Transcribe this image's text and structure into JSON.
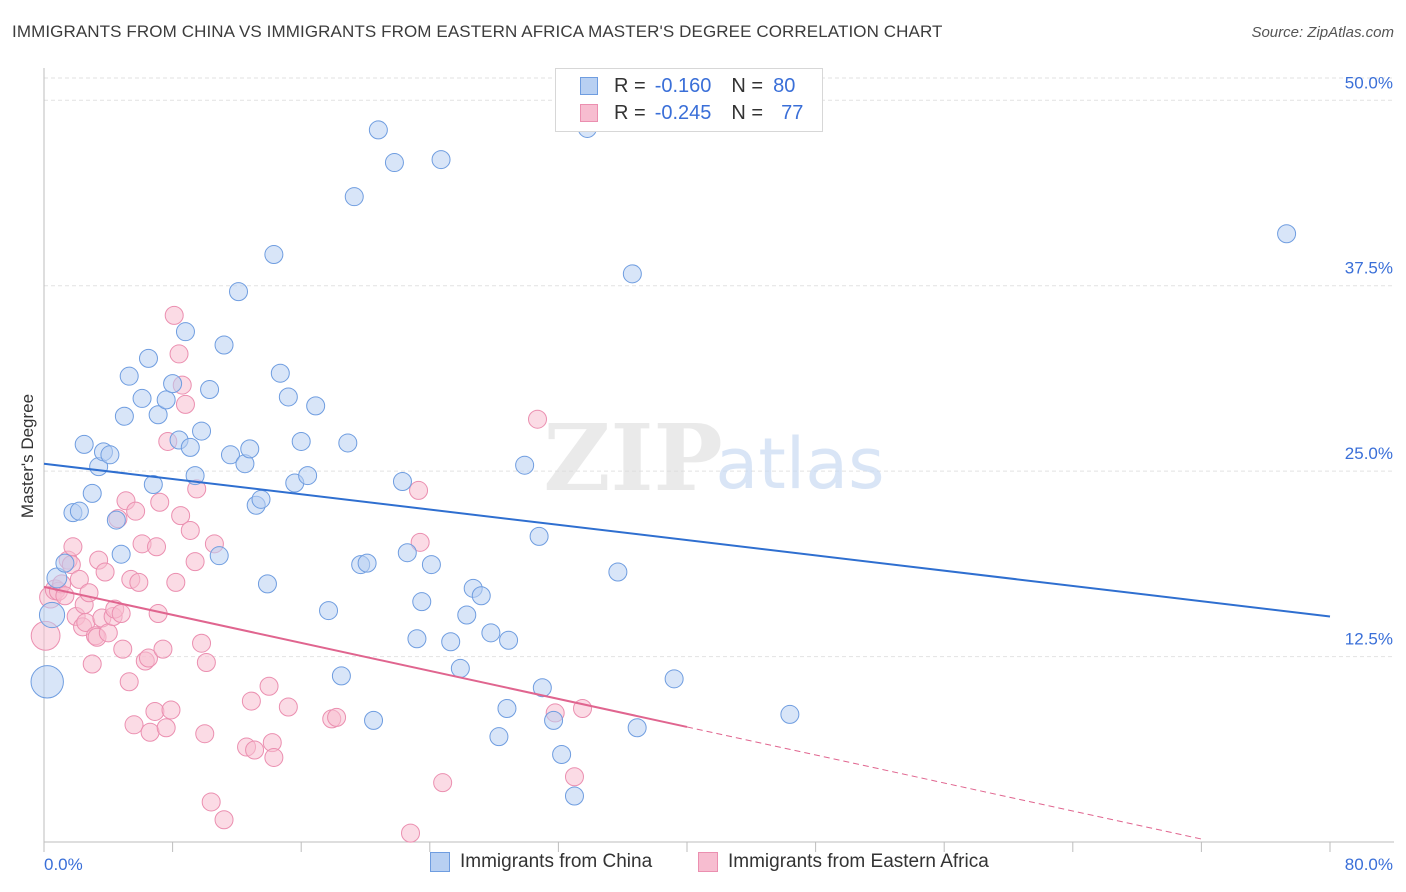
{
  "header": {
    "title": "IMMIGRANTS FROM CHINA VS IMMIGRANTS FROM EASTERN AFRICA MASTER'S DEGREE CORRELATION CHART",
    "source": "Source: ZipAtlas.com"
  },
  "watermark": {
    "zip": "ZIP",
    "atlas": "atlas"
  },
  "legend_top": {
    "rows": [
      {
        "r_label": "R =",
        "r_value": "-0.160",
        "n_label": "N =",
        "n_value": "80"
      },
      {
        "r_label": "R =",
        "r_value": "-0.245",
        "n_label": "N =",
        "n_value": "77"
      }
    ]
  },
  "legend_bottom": {
    "items": [
      {
        "label": "Immigrants from China"
      },
      {
        "label": "Immigrants from Eastern Africa"
      }
    ]
  },
  "colors": {
    "china_fill": "#b8d0f2",
    "china_stroke": "#6f9de0",
    "china_line": "#2f6fd0",
    "africa_fill": "#f7bdd0",
    "africa_stroke": "#eb8fb0",
    "africa_line": "#e0658f",
    "axis_label": "#3a6fd8",
    "grid": "#e2e2e2"
  },
  "chart_data": {
    "type": "scatter",
    "title": "IMMIGRANTS FROM CHINA VS IMMIGRANTS FROM EASTERN AFRICA MASTER'S DEGREE CORRELATION CHART",
    "xlabel": "",
    "ylabel": "Master's Degree",
    "xlim": [
      0,
      80
    ],
    "ylim": [
      0,
      51.5
    ],
    "x_tick_labels": [
      "0.0%",
      "80.0%"
    ],
    "y_ticks": [
      12.5,
      25.0,
      37.5,
      50.0
    ],
    "y_tick_labels": [
      "12.5%",
      "25.0%",
      "37.5%",
      "50.0%"
    ],
    "grid": true,
    "legend_position": "bottom",
    "series": [
      {
        "name": "Immigrants from China",
        "R": -0.16,
        "N": 80,
        "trend": {
          "x": [
            0,
            80
          ],
          "y": [
            25.5,
            15.2
          ],
          "dashed_from": null
        },
        "points": [
          [
            0.2,
            10.8,
            18
          ],
          [
            0.5,
            15.3,
            14
          ],
          [
            0.8,
            17.8,
            11
          ],
          [
            1.3,
            18.8,
            10
          ],
          [
            1.8,
            22.2,
            10
          ],
          [
            2.2,
            22.3,
            10
          ],
          [
            2.5,
            26.8,
            10
          ],
          [
            3.0,
            23.5,
            10
          ],
          [
            3.4,
            25.3,
            10
          ],
          [
            3.7,
            26.3,
            10
          ],
          [
            4.1,
            26.1,
            10
          ],
          [
            4.5,
            21.7,
            10
          ],
          [
            4.8,
            19.4,
            10
          ],
          [
            5.0,
            28.7,
            10
          ],
          [
            5.3,
            31.4,
            10
          ],
          [
            6.1,
            29.9,
            10
          ],
          [
            6.5,
            32.6,
            10
          ],
          [
            6.8,
            24.1,
            10
          ],
          [
            7.1,
            28.8,
            10
          ],
          [
            7.6,
            29.8,
            10
          ],
          [
            8.0,
            30.9,
            10
          ],
          [
            8.4,
            27.1,
            10
          ],
          [
            8.8,
            34.4,
            10
          ],
          [
            9.1,
            26.6,
            10
          ],
          [
            9.4,
            24.7,
            10
          ],
          [
            9.8,
            27.7,
            10
          ],
          [
            10.3,
            30.5,
            10
          ],
          [
            10.9,
            19.3,
            10
          ],
          [
            11.2,
            33.5,
            10
          ],
          [
            11.6,
            26.1,
            10
          ],
          [
            12.1,
            37.1,
            10
          ],
          [
            12.5,
            25.5,
            10
          ],
          [
            12.8,
            26.5,
            10
          ],
          [
            13.2,
            22.7,
            10
          ],
          [
            13.5,
            23.1,
            10
          ],
          [
            13.9,
            17.4,
            10
          ],
          [
            14.3,
            39.6,
            10
          ],
          [
            14.7,
            31.6,
            10
          ],
          [
            15.2,
            30.0,
            10
          ],
          [
            15.6,
            24.2,
            10
          ],
          [
            16.0,
            27.0,
            10
          ],
          [
            16.4,
            24.7,
            10
          ],
          [
            16.9,
            29.4,
            10
          ],
          [
            17.7,
            15.6,
            10
          ],
          [
            18.5,
            11.2,
            10
          ],
          [
            18.9,
            26.9,
            10
          ],
          [
            19.3,
            43.5,
            10
          ],
          [
            19.7,
            18.7,
            10
          ],
          [
            20.1,
            18.8,
            10
          ],
          [
            20.5,
            8.2,
            10
          ],
          [
            20.8,
            48.0,
            10
          ],
          [
            21.8,
            45.8,
            10
          ],
          [
            22.3,
            24.3,
            10
          ],
          [
            22.6,
            19.5,
            10
          ],
          [
            23.2,
            13.7,
            10
          ],
          [
            23.5,
            16.2,
            10
          ],
          [
            24.1,
            18.7,
            10
          ],
          [
            24.7,
            46.0,
            10
          ],
          [
            25.3,
            13.5,
            10
          ],
          [
            25.9,
            11.7,
            10
          ],
          [
            26.3,
            15.3,
            10
          ],
          [
            26.7,
            17.1,
            10
          ],
          [
            27.2,
            16.6,
            10
          ],
          [
            27.8,
            14.1,
            10
          ],
          [
            28.3,
            7.1,
            10
          ],
          [
            28.8,
            9.0,
            10
          ],
          [
            28.9,
            13.6,
            10
          ],
          [
            29.9,
            25.4,
            10
          ],
          [
            30.8,
            20.6,
            10
          ],
          [
            31.0,
            10.4,
            10
          ],
          [
            31.7,
            8.2,
            10
          ],
          [
            32.2,
            5.9,
            10
          ],
          [
            33.0,
            3.1,
            10
          ],
          [
            35.7,
            18.2,
            10
          ],
          [
            36.6,
            38.3,
            10
          ],
          [
            36.9,
            7.7,
            10
          ],
          [
            39.2,
            11.0,
            10
          ],
          [
            46.4,
            8.6,
            10
          ],
          [
            77.3,
            41.0,
            10
          ],
          [
            33.8,
            48.1,
            10
          ]
        ]
      },
      {
        "name": "Immigrants from Eastern Africa",
        "R": -0.245,
        "N": 77,
        "trend": {
          "x": [
            0,
            72
          ],
          "y": [
            17.2,
            0.2
          ],
          "dashed_from": 40
        },
        "points": [
          [
            0.1,
            13.9,
            16
          ],
          [
            0.4,
            16.5,
            12
          ],
          [
            0.7,
            17.0,
            11
          ],
          [
            0.9,
            16.9,
            10
          ],
          [
            1.1,
            17.4,
            10
          ],
          [
            1.3,
            16.6,
            10
          ],
          [
            1.5,
            19.0,
            10
          ],
          [
            1.7,
            18.7,
            10
          ],
          [
            1.8,
            19.9,
            10
          ],
          [
            2.0,
            15.2,
            10
          ],
          [
            2.2,
            17.7,
            10
          ],
          [
            2.4,
            14.5,
            10
          ],
          [
            2.5,
            16.0,
            10
          ],
          [
            2.6,
            14.8,
            10
          ],
          [
            2.8,
            16.8,
            10
          ],
          [
            3.0,
            12.0,
            10
          ],
          [
            3.2,
            13.9,
            10
          ],
          [
            3.3,
            13.8,
            10
          ],
          [
            3.4,
            19.0,
            10
          ],
          [
            3.6,
            15.1,
            10
          ],
          [
            3.8,
            18.2,
            10
          ],
          [
            4.0,
            14.1,
            10
          ],
          [
            4.3,
            15.2,
            10
          ],
          [
            4.4,
            15.7,
            10
          ],
          [
            4.6,
            21.8,
            10
          ],
          [
            4.8,
            15.4,
            10
          ],
          [
            4.9,
            13.0,
            10
          ],
          [
            5.1,
            23.0,
            10
          ],
          [
            5.3,
            10.8,
            10
          ],
          [
            5.4,
            17.7,
            10
          ],
          [
            5.6,
            7.9,
            10
          ],
          [
            5.7,
            22.3,
            10
          ],
          [
            5.9,
            17.5,
            10
          ],
          [
            6.1,
            20.1,
            10
          ],
          [
            6.3,
            12.2,
            10
          ],
          [
            6.5,
            12.4,
            10
          ],
          [
            6.6,
            7.4,
            10
          ],
          [
            6.9,
            8.8,
            10
          ],
          [
            7.0,
            19.9,
            10
          ],
          [
            7.1,
            15.4,
            10
          ],
          [
            7.2,
            22.9,
            10
          ],
          [
            7.4,
            13.0,
            10
          ],
          [
            7.6,
            7.7,
            10
          ],
          [
            7.7,
            27.0,
            10
          ],
          [
            7.9,
            8.9,
            10
          ],
          [
            8.1,
            35.5,
            10
          ],
          [
            8.2,
            17.5,
            10
          ],
          [
            8.4,
            32.9,
            10
          ],
          [
            8.5,
            22.0,
            10
          ],
          [
            8.6,
            30.8,
            10
          ],
          [
            8.8,
            29.5,
            10
          ],
          [
            9.1,
            21.0,
            10
          ],
          [
            9.4,
            18.9,
            10
          ],
          [
            9.5,
            23.8,
            10
          ],
          [
            9.8,
            13.4,
            10
          ],
          [
            10.0,
            7.3,
            10
          ],
          [
            10.1,
            12.1,
            10
          ],
          [
            10.4,
            2.7,
            10
          ],
          [
            10.6,
            20.1,
            10
          ],
          [
            11.2,
            1.5,
            10
          ],
          [
            12.6,
            6.4,
            10
          ],
          [
            12.9,
            9.5,
            10
          ],
          [
            13.1,
            6.2,
            10
          ],
          [
            14.0,
            10.5,
            10
          ],
          [
            14.2,
            6.7,
            10
          ],
          [
            14.3,
            5.7,
            10
          ],
          [
            15.2,
            9.1,
            10
          ],
          [
            17.9,
            8.3,
            10
          ],
          [
            18.2,
            8.4,
            10
          ],
          [
            22.8,
            0.6,
            10
          ],
          [
            23.3,
            23.7,
            10
          ],
          [
            23.4,
            20.2,
            10
          ],
          [
            24.8,
            4.0,
            10
          ],
          [
            30.7,
            28.5,
            10
          ],
          [
            31.8,
            8.7,
            10
          ],
          [
            33.0,
            4.4,
            10
          ],
          [
            33.5,
            9.0,
            10
          ]
        ]
      }
    ]
  }
}
